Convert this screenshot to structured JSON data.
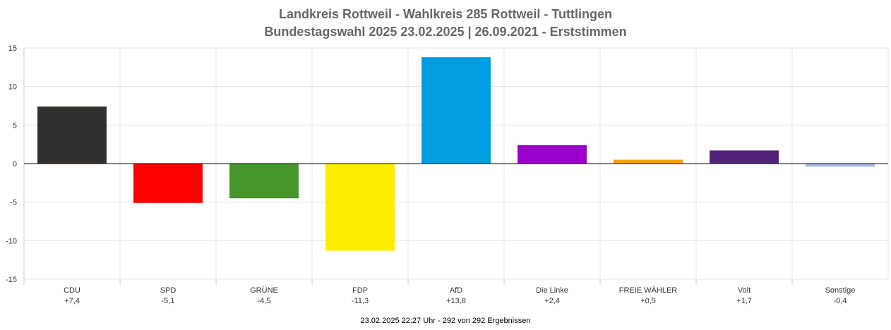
{
  "chart_data": {
    "type": "bar",
    "title": "Landkreis Rottweil - Wahlkreis 285 Rottweil - Tuttlingen",
    "subtitle": "Bundestagswahl 2025 23.02.2025  | 26.09.2021 - Erststimmen",
    "categories": [
      "CDU",
      "SPD",
      "GRÜNE",
      "FDP",
      "AfD",
      "Die Linke",
      "FREIE WÄHLER",
      "Volt",
      "Sonstige"
    ],
    "value_labels": [
      "+7,4",
      "-5,1",
      "-4,5",
      "-11,3",
      "+13,8",
      "+2,4",
      "+0,5",
      "+1,7",
      "-0,4"
    ],
    "values": [
      7.4,
      -5.1,
      -4.5,
      -11.3,
      13.8,
      2.4,
      0.5,
      1.7,
      -0.4
    ],
    "colors": [
      "#32302e",
      "#ff0000",
      "#46962b",
      "#ffed00",
      "#009ee0",
      "#9900cc",
      "#f7a000",
      "#502379",
      "#a6b8e5"
    ],
    "ylim": [
      -15,
      15
    ],
    "yticks": [
      "15",
      "10",
      "5",
      "0",
      "-5",
      "-10",
      "-15"
    ],
    "ytick_values": [
      15,
      10,
      5,
      0,
      -5,
      -10,
      -15
    ],
    "grid": true,
    "xlabel": "",
    "ylabel": ""
  },
  "footer": "23.02.2025 22:27 Uhr - 292 von 292 Ergebnissen"
}
